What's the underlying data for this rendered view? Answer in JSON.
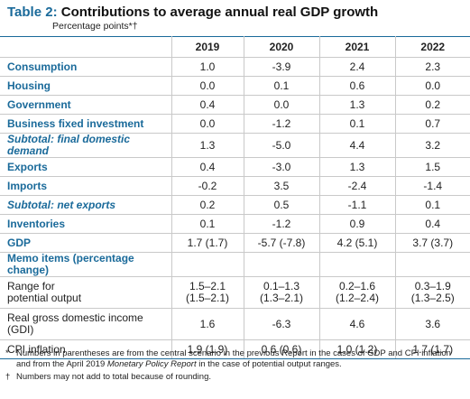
{
  "header": {
    "label": "Table 2:",
    "title": "Contributions to average annual real GDP growth",
    "subtitle": "Percentage points*†"
  },
  "table": {
    "columns": [
      "2019",
      "2020",
      "2021",
      "2022"
    ],
    "rows": [
      {
        "label": "Consumption",
        "values": [
          "1.0",
          "-3.9",
          "2.4",
          "2.3"
        ]
      },
      {
        "label": "Housing",
        "values": [
          "0.0",
          "0.1",
          "0.6",
          "0.0"
        ]
      },
      {
        "label": "Government",
        "values": [
          "0.4",
          "0.0",
          "1.3",
          "0.2"
        ]
      },
      {
        "label": "Business fixed investment",
        "values": [
          "0.0",
          "-1.2",
          "0.1",
          "0.7"
        ]
      },
      {
        "label": "Subtotal: final domestic demand",
        "values": [
          "1.3",
          "-5.0",
          "4.4",
          "3.2"
        ],
        "italic": true
      },
      {
        "label": "Exports",
        "values": [
          "0.4",
          "-3.0",
          "1.3",
          "1.5"
        ]
      },
      {
        "label": "Imports",
        "values": [
          "-0.2",
          "3.5",
          "-2.4",
          "-1.4"
        ]
      },
      {
        "label": "Subtotal: net exports",
        "values": [
          "0.2",
          "0.5",
          "-1.1",
          "0.1"
        ],
        "italic": true
      },
      {
        "label": "Inventories",
        "values": [
          "0.1",
          "-1.2",
          "0.9",
          "0.4"
        ]
      },
      {
        "label": "GDP",
        "values": [
          "1.7 (1.7)",
          "-5.7 (-7.8)",
          "4.2 (5.1)",
          "3.7 (3.7)"
        ]
      }
    ],
    "memo_heading": "Memo items (percentage change)",
    "memo_rows": [
      {
        "label": "Range for\npotential output",
        "values": [
          "1.5–2.1\n(1.5–2.1)",
          "0.1–1.3\n(1.3–2.1)",
          "0.2–1.6\n(1.2–2.4)",
          "0.3–1.9\n(1.3–2.5)"
        ]
      },
      {
        "label": "Real gross domestic income\n(GDI)",
        "values": [
          "1.6",
          "-6.3",
          "4.6",
          "3.6"
        ]
      },
      {
        "label": "CPI inflation",
        "values": [
          "1.9 (1.9)",
          "0.6 (0.6)",
          "1.0 (1.2)",
          "1.7 (1.7)"
        ]
      }
    ]
  },
  "footnotes": [
    {
      "symbol": "*",
      "text": [
        "Numbers in parentheses are from the central scenario in the previous Report in the cases of GDP and CPI inflation and from the April 2019 ",
        "Monetary Policy Report",
        " in the case of potential output ranges."
      ]
    },
    {
      "symbol": "†",
      "text": [
        "Numbers may not add to total because of rounding."
      ]
    }
  ]
}
